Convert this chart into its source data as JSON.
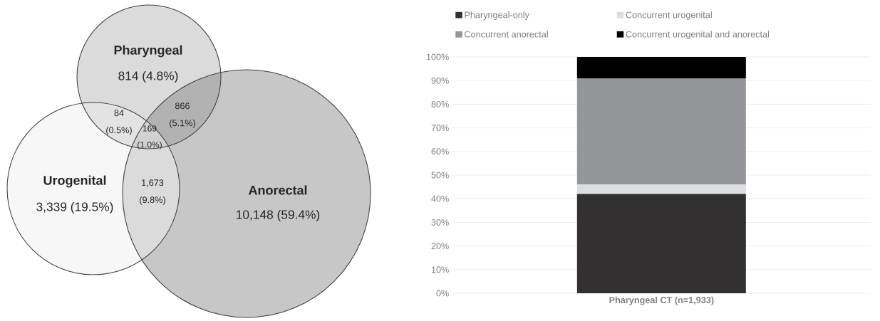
{
  "chart_data": [
    {
      "type": "other",
      "categories": [
        "Pharyngeal",
        "Urogenital",
        "Anorectal",
        null,
        null,
        null,
        null
      ],
      "value_labels": [
        "814 (4.8%)",
        "3,339 (19.5%)",
        "10,148 (59.4%)",
        "84 (0.5%)",
        "866 (5.1%)",
        "1,673 (9.8%)",
        "169 (1.0%)"
      ]
    },
    {
      "type": "bar",
      "stacked": true,
      "categories": [
        "Pharyngeal CT (n=1,933)"
      ],
      "series": [
        {
          "name": "Pharyngeal-only",
          "color": "#323031",
          "values": [
            42
          ]
        },
        {
          "name": "Concurrent urogenital",
          "color": "#dcdddf",
          "values": [
            4
          ]
        },
        {
          "name": "Concurrent anorectal",
          "color": "#939598",
          "values": [
            45
          ]
        },
        {
          "name": "Concurrent urogenital and anorectal",
          "color": "#000000",
          "values": [
            9
          ]
        }
      ],
      "ylim": [
        0,
        100
      ],
      "yticks": [
        {
          "value": 0,
          "label": "0%"
        },
        {
          "value": 10,
          "label": "10%"
        },
        {
          "value": 20,
          "label": "20%"
        },
        {
          "value": 30,
          "label": "30%"
        },
        {
          "value": 40,
          "label": "40%"
        },
        {
          "value": 50,
          "label": "50%"
        },
        {
          "value": 60,
          "label": "60%"
        },
        {
          "value": 70,
          "label": "70%"
        },
        {
          "value": 80,
          "label": "80%"
        },
        {
          "value": 90,
          "label": "90%"
        },
        {
          "value": 100,
          "label": "100%"
        }
      ],
      "grid": "y",
      "legend": "top"
    }
  ]
}
